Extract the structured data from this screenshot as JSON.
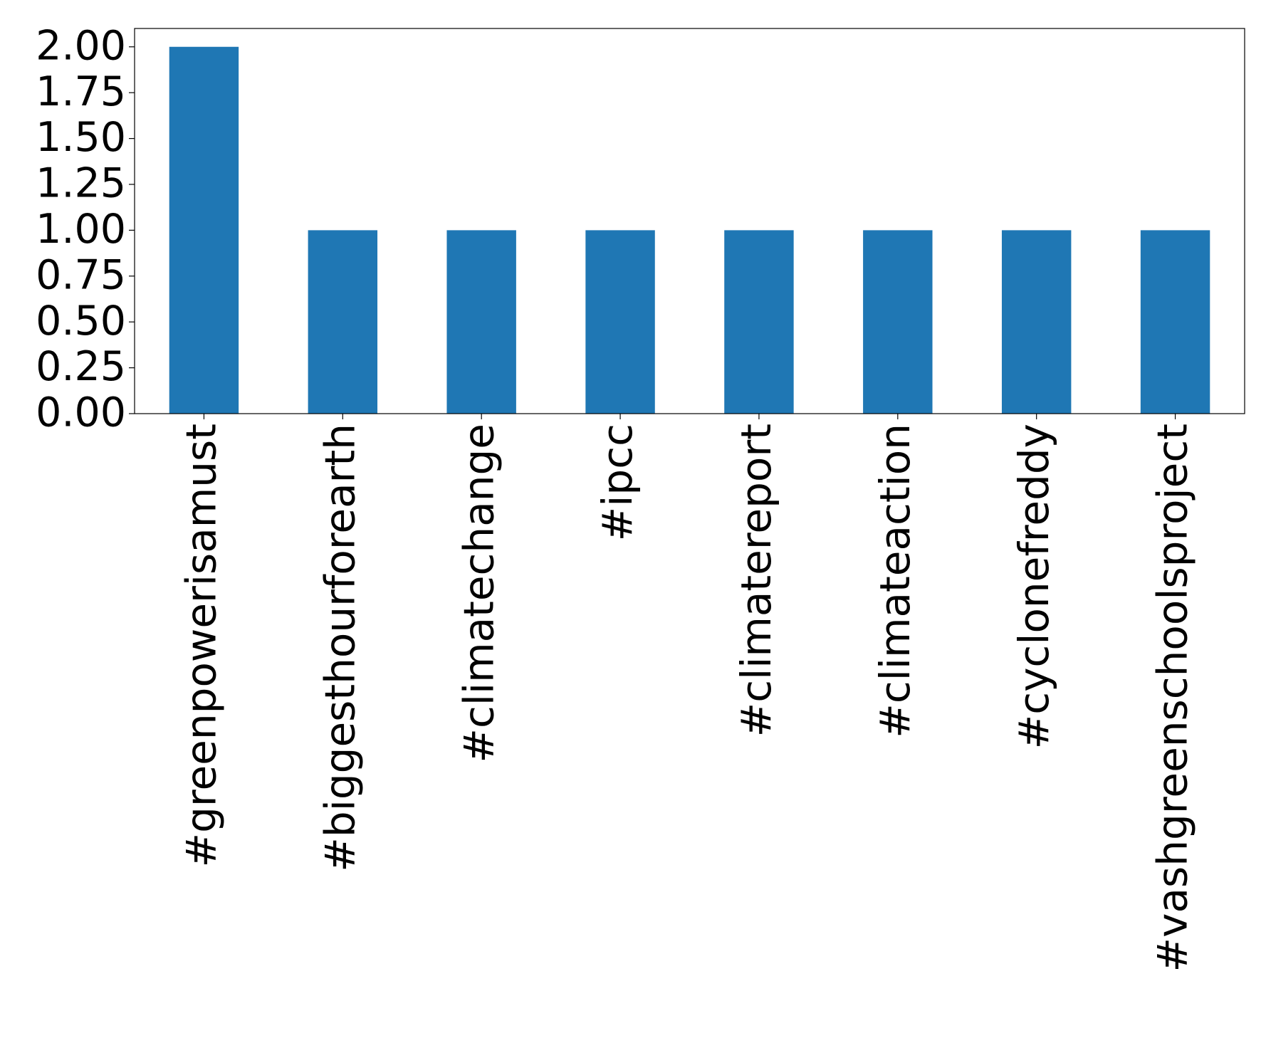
{
  "chart_data": {
    "type": "bar",
    "categories": [
      "#greenpowerisamust",
      "#biggesthourforearth",
      "#climatechange",
      "#ipcc",
      "#climatereport",
      "#climateaction",
      "#cyclonefreddy",
      "#vashgreenschoolsproject"
    ],
    "values": [
      2,
      1,
      1,
      1,
      1,
      1,
      1,
      1
    ],
    "color": "#1f77b4",
    "ylim": [
      0,
      2.1
    ],
    "yticks": [
      {
        "value": 0,
        "label": "0.00"
      },
      {
        "value": 0.25,
        "label": "0.25"
      },
      {
        "value": 0.5,
        "label": "0.50"
      },
      {
        "value": 0.75,
        "label": "0.75"
      },
      {
        "value": 1,
        "label": "1.00"
      },
      {
        "value": 1.25,
        "label": "1.25"
      },
      {
        "value": 1.5,
        "label": "1.50"
      },
      {
        "value": 1.75,
        "label": "1.75"
      },
      {
        "value": 2,
        "label": "2.00"
      }
    ],
    "grid": false
  }
}
